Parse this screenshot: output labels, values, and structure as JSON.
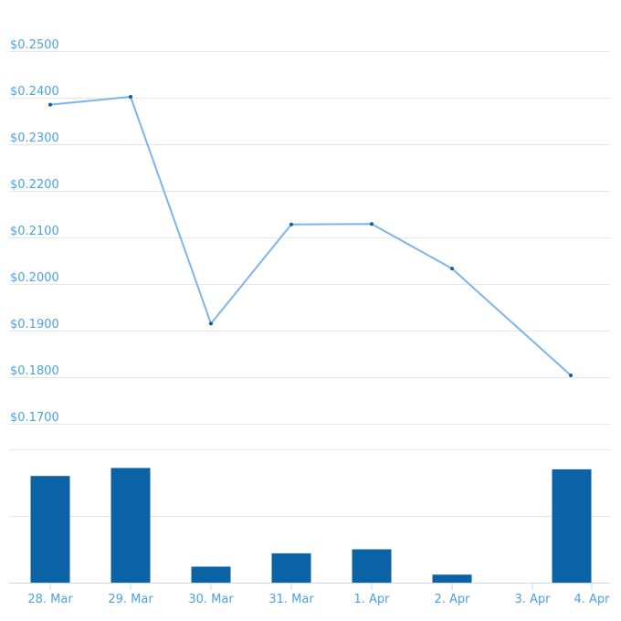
{
  "chart_data": {
    "type": "line+bar",
    "categories": [
      "28. Mar",
      "29. Mar",
      "30. Mar",
      "31. Mar",
      "1. Apr",
      "2. Apr",
      "3. Apr",
      "4. Apr"
    ],
    "price": {
      "type": "line",
      "values": [
        0.2385,
        0.2402,
        0.1915,
        0.2128,
        0.2129,
        0.2033,
        null,
        0.1804
      ],
      "y_ticks": [
        "$0.1700",
        "$0.1800",
        "$0.1900",
        "$0.2000",
        "$0.2100",
        "$0.2200",
        "$0.2300",
        "$0.2400",
        "$0.2500"
      ],
      "ylim": [
        0.17,
        0.25
      ],
      "color": "#7cb5ec",
      "marker_color": "#0b5ea3"
    },
    "volume": {
      "type": "bar",
      "values": [
        80,
        86,
        12,
        22,
        25,
        6,
        0,
        85
      ],
      "ylim": [
        0,
        100
      ],
      "color": "#0b62a4"
    },
    "grid": true
  }
}
